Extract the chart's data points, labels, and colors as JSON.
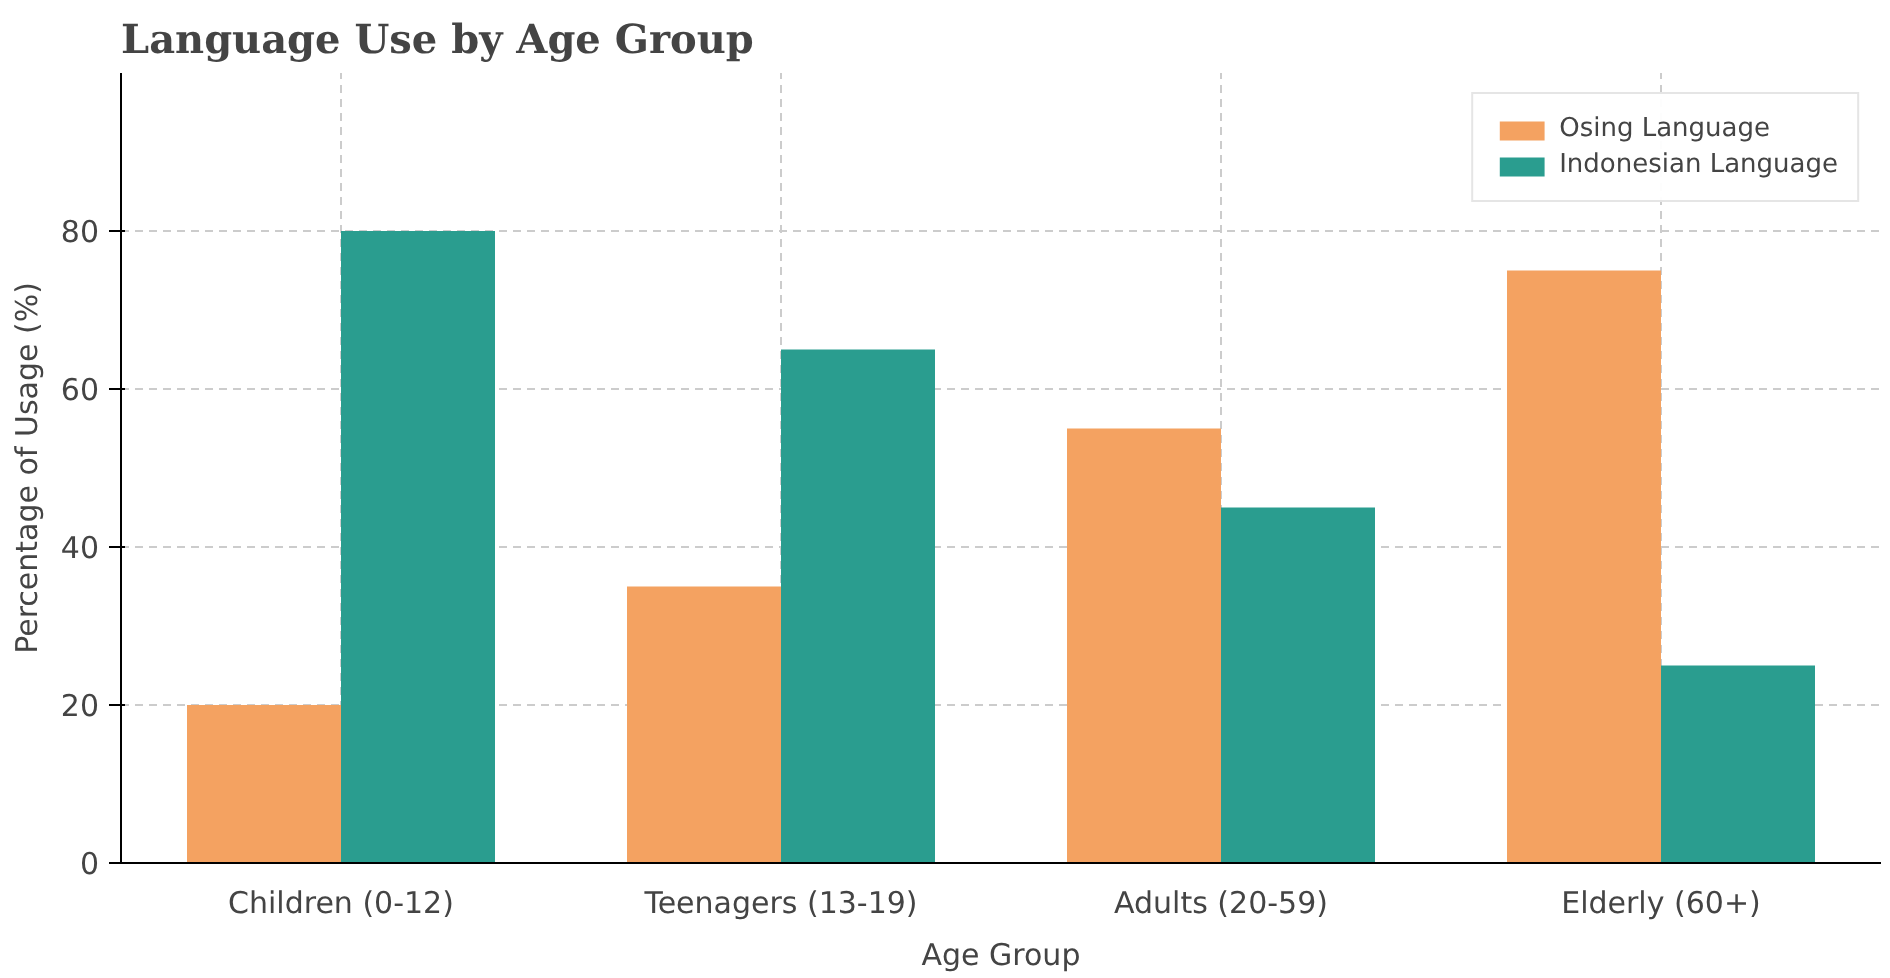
{
  "chart_data": {
    "type": "bar",
    "title": "Language Use by Age Group",
    "xlabel": "Age Group",
    "ylabel": "Percentage of Usage (%)",
    "categories": [
      "Children (0-12)",
      "Teenagers (13-19)",
      "Adults (20-59)",
      "Elderly (60+)"
    ],
    "series": [
      {
        "name": "Osing Language",
        "color": "#f4a261",
        "values": [
          20,
          35,
          55,
          75
        ]
      },
      {
        "name": "Indonesian Language",
        "color": "#2a9d8f",
        "values": [
          80,
          65,
          45,
          25
        ]
      }
    ],
    "ylim": [
      0,
      100
    ],
    "yticks": [
      0,
      20,
      40,
      60,
      80
    ],
    "grid": true,
    "legend": "top right"
  }
}
